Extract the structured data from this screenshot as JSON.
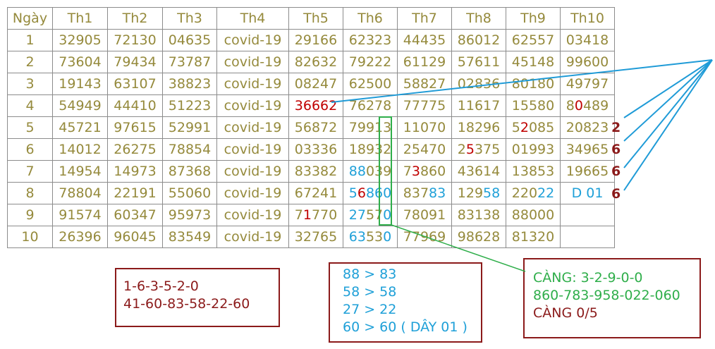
{
  "table": {
    "header": [
      "Ngày",
      "Th1",
      "Th2",
      "Th3",
      "Th4",
      "Th5",
      "Th6",
      "Th7",
      "Th8",
      "Th9",
      "Th10"
    ],
    "rows": [
      [
        "1",
        "32905",
        "72130",
        "04635",
        "covid-19",
        "29166",
        "62323",
        "44435",
        "86012",
        "62557",
        "03418"
      ],
      [
        "2",
        "73604",
        "79434",
        "73787",
        "covid-19",
        "82632",
        "79222",
        "61129",
        "57611",
        "45148",
        "99600"
      ],
      [
        "3",
        "19143",
        "63107",
        "38823",
        "covid-19",
        "08247",
        "62500",
        "58827",
        "02836",
        "80180",
        "49797"
      ],
      [
        "4",
        "54949",
        "44410",
        "51223",
        "covid-19",
        [
          {
            "text": "36662",
            "color": "#c00000"
          }
        ],
        "76278",
        "77775",
        "11617",
        "15580",
        [
          "8",
          {
            "text": "0",
            "color": "#c00000"
          },
          "489"
        ]
      ],
      [
        "5",
        "45721",
        "97615",
        "52991",
        "covid-19",
        "56872",
        "79913",
        "11070",
        "18296",
        [
          "5",
          {
            "text": "2",
            "color": "#c00000"
          },
          "085"
        ],
        "20823"
      ],
      [
        "6",
        "14012",
        "26275",
        "78854",
        "covid-19",
        "03336",
        "18932",
        "25470",
        [
          "2",
          {
            "text": "5",
            "color": "#c00000"
          },
          "375"
        ],
        "01993",
        "34965"
      ],
      [
        "7",
        "14954",
        "14973",
        "87368",
        "covid-19",
        "83382",
        [
          {
            "text": "88",
            "color": "#1fa0d8"
          },
          "039"
        ],
        [
          "7",
          {
            "text": "3",
            "color": "#c00000"
          },
          "860"
        ],
        "43614",
        "13853",
        "19665"
      ],
      [
        "8",
        "78804",
        "22191",
        "55060",
        "covid-19",
        "67241",
        [
          {
            "text": "5",
            "color": "#1fa0d8"
          },
          {
            "text": "6",
            "color": "#c00000"
          },
          {
            "text": "860",
            "color": "#1fa0d8"
          }
        ],
        [
          "837",
          {
            "text": "83",
            "color": "#1fa0d8"
          }
        ],
        [
          "129",
          {
            "text": "58",
            "color": "#1fa0d8"
          }
        ],
        [
          "220",
          {
            "text": "22",
            "color": "#1fa0d8"
          }
        ],
        [
          {
            "text": "D 01",
            "color": "#1fa0d8"
          }
        ]
      ],
      [
        "9",
        "91574",
        "60347",
        "95973",
        "covid-19",
        [
          "7",
          {
            "text": "1",
            "color": "#c00000"
          },
          "770"
        ],
        [
          {
            "text": "27",
            "color": "#1fa0d8"
          },
          "57",
          {
            "text": "0",
            "color": "#1fa0d8"
          }
        ],
        "78091",
        "83138",
        "88000"
      ],
      [
        "10",
        "26396",
        "96045",
        "83549",
        "covid-19",
        "32765",
        [
          {
            "text": "63",
            "color": "#1fa0d8"
          },
          "53",
          {
            "text": "0",
            "color": "#1fa0d8"
          }
        ],
        "77969",
        "98628",
        "81320"
      ]
    ]
  },
  "side_notes": [
    "2",
    "6",
    "6",
    "6"
  ],
  "box_left": [
    "1-6-3-5-2-0",
    "41-60-83-58-22-60"
  ],
  "box_middle": [
    "88 > 83",
    "58 > 58",
    "27 > 22",
    "60 > 60 ( DÂY 01 )"
  ],
  "box_right": [
    {
      "text": "CÀNG: 3-2-9-0-0",
      "color": "#2fae4a"
    },
    {
      "text": "860-783-958-022-060",
      "color": "#2fae4a"
    },
    {
      "text": "CÀNG 0/5",
      "color": "#8b1a1a"
    }
  ]
}
